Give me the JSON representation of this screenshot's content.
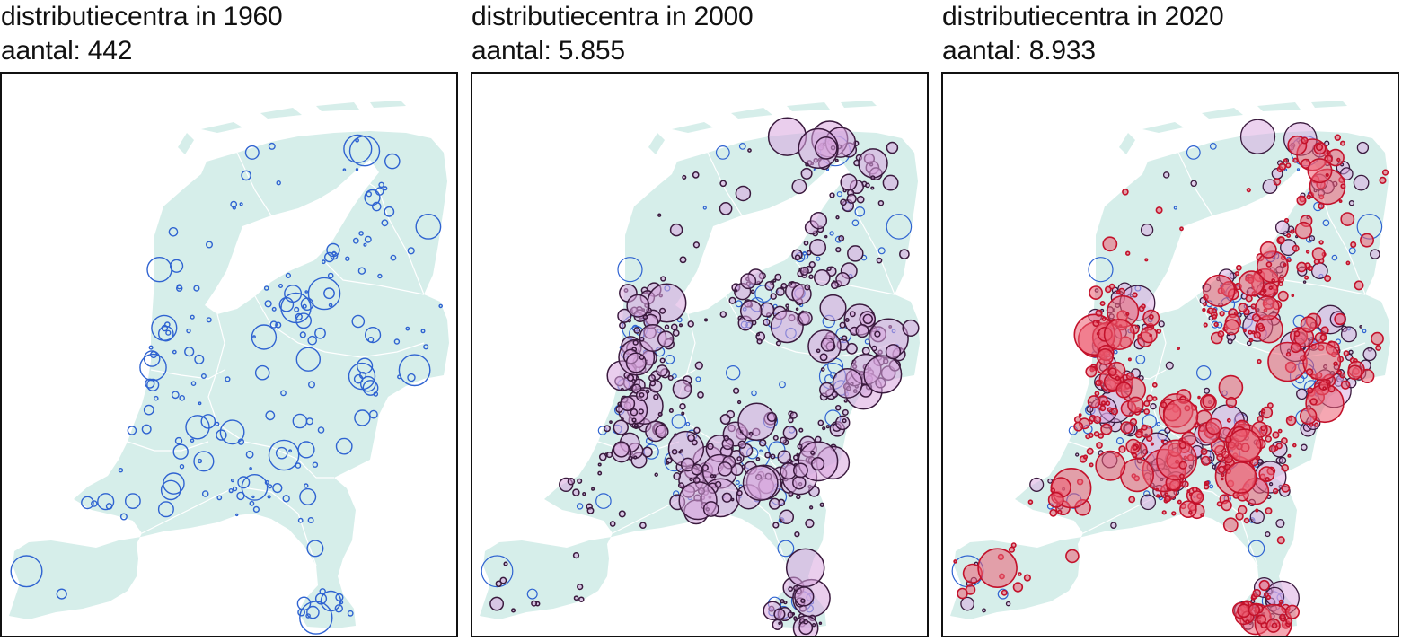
{
  "colors": {
    "land": "#d6eeea",
    "border": "#ffffff",
    "dc_1960": "#2f63d1",
    "dc_2000_stroke": "#3a1a3e",
    "dc_2000_fill": "#d9a6df",
    "dc_2020_stroke": "#c3122b",
    "dc_2020_fill": "#ec5f72"
  },
  "panels": [
    {
      "title": "distributiecentra in 1960",
      "count_label": "aantal: 442",
      "year": 1960,
      "count": 442
    },
    {
      "title": "distributiecentra in 2000",
      "count_label": "aantal: 5.855",
      "year": 2000,
      "count": 5855
    },
    {
      "title": "distributiecentra in 2020",
      "count_label": "aantal: 8.933",
      "year": 2020,
      "count": 8933
    }
  ]
}
